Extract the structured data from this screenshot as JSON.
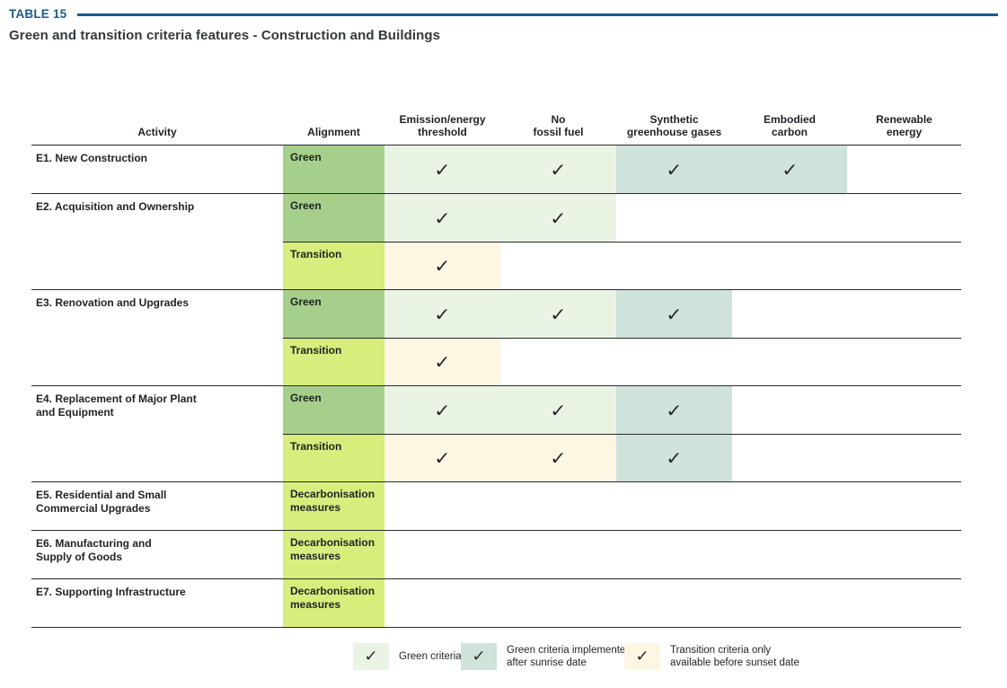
{
  "header": {
    "table_label": "TABLE 15",
    "subtitle": "Green and transition criteria features - Construction and Buildings"
  },
  "glyphs": {
    "check": "✓"
  },
  "colors": {
    "title_blue": "#1b5a8a",
    "alignment_green": "#a7cf8c",
    "alignment_lime": "#d7ee7d",
    "green_criteria": "#eaf4e5",
    "sunrise_teal": "#d0e3db",
    "transition_cream": "#fdf6e3",
    "row_line": "#2a2a2a",
    "text": "#1f2224"
  },
  "table": {
    "columns": [
      "Activity",
      "Alignment",
      "Emission/energy\nthreshold",
      "No\nfossil fuel",
      "Synthetic\ngreenhouse gases",
      "Embodied\ncarbon",
      "Renewable\nenergy"
    ],
    "rows": [
      {
        "activity": "E1. New Construction",
        "subrows": [
          {
            "alignment": "Green",
            "cells": [
              "green",
              "green",
              "sunrise",
              "sunrise",
              "none"
            ]
          }
        ]
      },
      {
        "activity": "E2. Acquisition and Ownership",
        "subrows": [
          {
            "alignment": "Green",
            "cells": [
              "green",
              "green",
              "none",
              "none",
              "none"
            ]
          },
          {
            "alignment": "Transition",
            "cells": [
              "transition",
              "none",
              "none",
              "none",
              "none"
            ]
          }
        ]
      },
      {
        "activity": "E3. Renovation and Upgrades",
        "subrows": [
          {
            "alignment": "Green",
            "cells": [
              "green",
              "green",
              "sunrise",
              "none",
              "none"
            ]
          },
          {
            "alignment": "Transition",
            "cells": [
              "transition",
              "none",
              "none",
              "none",
              "none"
            ]
          }
        ]
      },
      {
        "activity": "E4. Replacement of Major Plant\nand Equipment",
        "subrows": [
          {
            "alignment": "Green",
            "cells": [
              "green",
              "green",
              "sunrise",
              "none",
              "none"
            ]
          },
          {
            "alignment": "Transition",
            "cells": [
              "transition",
              "transition",
              "sunrise",
              "none",
              "none"
            ]
          }
        ]
      },
      {
        "activity": "E5. Residential and Small\nCommercial Upgrades",
        "subrows": [
          {
            "alignment": "Decarbonisation\nmeasures",
            "cells": [
              "none",
              "none",
              "none",
              "none",
              "none"
            ]
          }
        ]
      },
      {
        "activity": "E6. Manufacturing and\nSupply of Goods",
        "subrows": [
          {
            "alignment": "Decarbonisation\nmeasures",
            "cells": [
              "none",
              "none",
              "none",
              "none",
              "none"
            ]
          }
        ]
      },
      {
        "activity": "E7. Supporting Infrastructure",
        "subrows": [
          {
            "alignment": "Decarbonisation\nmeasures",
            "cells": [
              "none",
              "none",
              "none",
              "none",
              "none"
            ]
          }
        ]
      }
    ]
  },
  "legend": [
    {
      "type": "green",
      "label": "Green criteria"
    },
    {
      "type": "sunrise",
      "label": "Green criteria implemented\nafter sunrise date"
    },
    {
      "type": "transition",
      "label": "Transition criteria only\navailable before sunset date"
    }
  ]
}
